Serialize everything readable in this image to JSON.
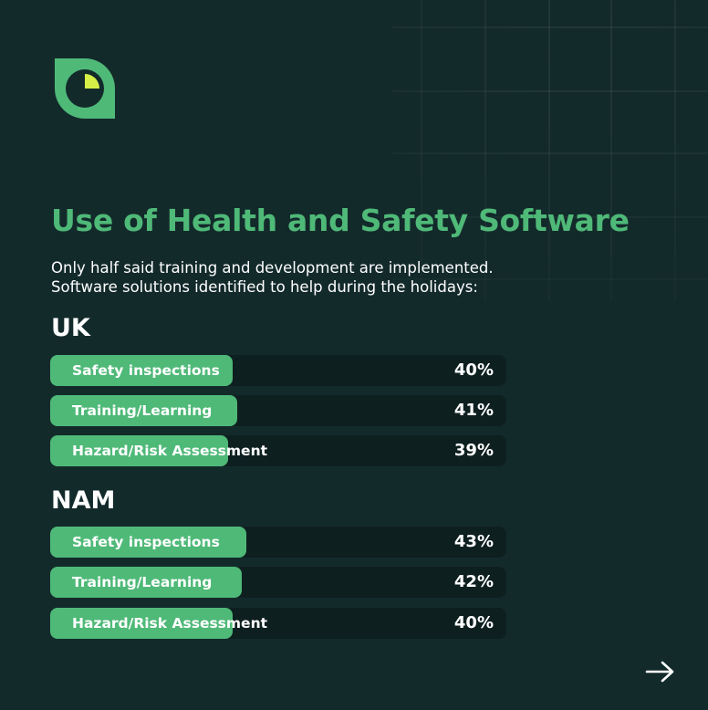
{
  "colors": {
    "background": "#132a2b",
    "accent_green": "#4fb978",
    "bar_track": "#0e1f20",
    "logo_yellow": "#d6f048",
    "text": "#ffffff"
  },
  "header": {
    "logo_icon": "leaf-logo-icon",
    "title": "Use of Health and Safety Software",
    "subtitle_line1": "Only half said training and development are implemented.",
    "subtitle_line2": "Software solutions identified to help during the holidays:"
  },
  "chart_data": [
    {
      "type": "bar",
      "orientation": "horizontal",
      "group": "UK",
      "categories": [
        "Safety inspections",
        "Training/Learning",
        "Hazard/Risk Assessment"
      ],
      "values": [
        40,
        41,
        39
      ],
      "value_labels": [
        "40%",
        "41%",
        "39%"
      ],
      "xlim": [
        0,
        100
      ]
    },
    {
      "type": "bar",
      "orientation": "horizontal",
      "group": "NAM",
      "categories": [
        "Safety inspections",
        "Training/Learning",
        "Hazard/Risk Assessment"
      ],
      "values": [
        43,
        42,
        40
      ],
      "value_labels": [
        "43%",
        "42%",
        "40%"
      ],
      "xlim": [
        0,
        100
      ]
    }
  ],
  "navigation": {
    "next_icon": "arrow-right-icon"
  }
}
